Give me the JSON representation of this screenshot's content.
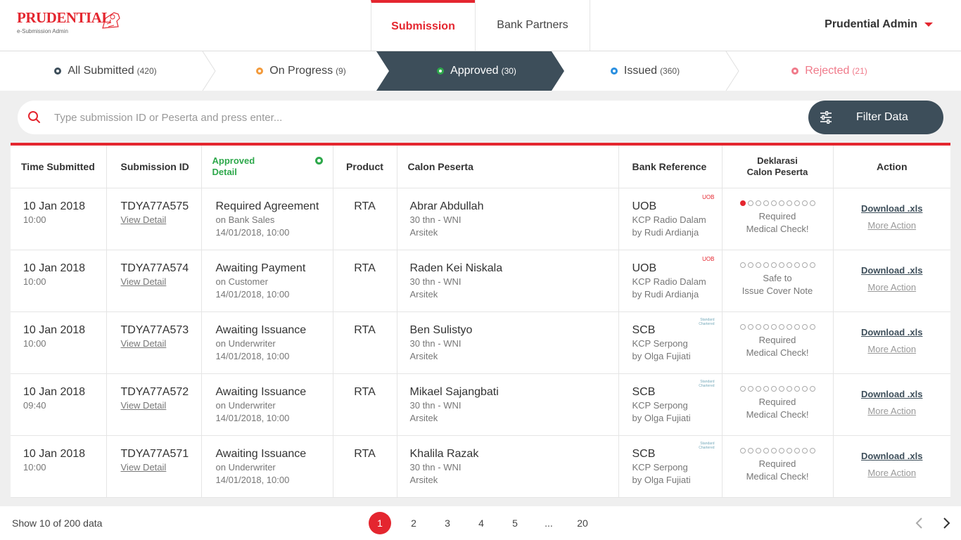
{
  "brand": {
    "name": "PRUDENTIAL",
    "subtitle": "e-Submission Admin"
  },
  "nav": {
    "tabs": [
      {
        "label": "Submission"
      },
      {
        "label": "Bank Partners"
      }
    ],
    "user": "Prudential Admin"
  },
  "statuses": [
    {
      "label": "All Submitted",
      "count": "(420)",
      "color": "#3d4e5a"
    },
    {
      "label": "On Progress",
      "count": "(9)",
      "color": "#f39a3b"
    },
    {
      "label": "Approved",
      "count": "(30)",
      "color": "#2ea84b"
    },
    {
      "label": "Issued",
      "count": "(360)",
      "color": "#2a8fe0"
    },
    {
      "label": "Rejected",
      "count": "(21)",
      "color": "#f07a8a"
    }
  ],
  "search": {
    "placeholder": "Type submission ID or Peserta and press enter...",
    "filter_label": "Filter Data"
  },
  "table": {
    "headers": {
      "time": "Time  Submitted",
      "id": "Submission ID",
      "approved_1": "Approved",
      "approved_2": "Detail",
      "product": "Product",
      "calon": "Calon Peserta",
      "bank": "Bank Reference",
      "dekl_1": "Deklarasi",
      "dekl_2": "Calon Peserta",
      "action": "Action"
    },
    "rows": [
      {
        "date": "10 Jan 2018",
        "time": "10:00",
        "id": "TDYA77A575",
        "view": "View Detail",
        "status": "Required Agreement",
        "status_by": "on Bank Sales",
        "status_time": "14/01/2018, 10:00",
        "product": "RTA",
        "name": "Abrar Abdullah",
        "age": "30 thn  - WNI",
        "job": "Arsitek",
        "bank": "UOB",
        "bank_logo": "UOB",
        "branch": "KCP Radio Dalam",
        "agent": "by Rudi Ardianja",
        "dekl_1": "Required",
        "dekl_2": "Medical Check!",
        "dots_on": 1,
        "download": "Download .xls",
        "more": "More Action"
      },
      {
        "date": "10 Jan 2018",
        "time": "10:00",
        "id": "TDYA77A574",
        "view": "View Detail",
        "status": "Awaiting Payment",
        "status_by": "on Customer",
        "status_time": "14/01/2018, 10:00",
        "product": "RTA",
        "name": "Raden Kei Niskala",
        "age": "30 thn  - WNI",
        "job": "Arsitek",
        "bank": "UOB",
        "bank_logo": "UOB",
        "branch": "KCP Radio Dalam",
        "agent": "by Rudi Ardianja",
        "dekl_1": "Safe to",
        "dekl_2": "Issue Cover Note",
        "dots_on": 0,
        "download": "Download .xls",
        "more": "More Action"
      },
      {
        "date": "10 Jan 2018",
        "time": "10:00",
        "id": "TDYA77A573",
        "view": "View Detail",
        "status": "Awaiting Issuance",
        "status_by": "on Underwriter",
        "status_time": "14/01/2018, 10:00",
        "product": "RTA",
        "name": "Ben Sulistyo",
        "age": "30 thn  - WNI",
        "job": "Arsitek",
        "bank": "SCB",
        "bank_logo": "Standard Chartered",
        "branch": "KCP Serpong",
        "agent": "by Olga Fujiati",
        "dekl_1": "Required",
        "dekl_2": "Medical Check!",
        "dots_on": 0,
        "download": "Download .xls",
        "more": "More Action"
      },
      {
        "date": "10 Jan 2018",
        "time": "09:40",
        "id": "TDYA77A572",
        "view": "View Detail",
        "status": "Awaiting Issuance",
        "status_by": "on Underwriter",
        "status_time": "14/01/2018, 10:00",
        "product": "RTA",
        "name": "Mikael Sajangbati",
        "age": "30 thn  - WNI",
        "job": "Arsitek",
        "bank": "SCB",
        "bank_logo": "Standard Chartered",
        "branch": "KCP Serpong",
        "agent": "by Olga Fujiati",
        "dekl_1": "Required",
        "dekl_2": "Medical Check!",
        "dots_on": 0,
        "download": "Download .xls",
        "more": "More Action"
      },
      {
        "date": "10 Jan 2018",
        "time": "10:00",
        "id": "TDYA77A571",
        "view": "View Detail",
        "status": "Awaiting Issuance",
        "status_by": "on Underwriter",
        "status_time": "14/01/2018, 10:00",
        "product": "RTA",
        "name": "Khalila Razak",
        "age": "30 thn  - WNI",
        "job": "Arsitek",
        "bank": "SCB",
        "bank_logo": "Standard Chartered",
        "branch": "KCP Serpong",
        "agent": "by Olga Fujiati",
        "dekl_1": "Required",
        "dekl_2": "Medical Check!",
        "dots_on": 0,
        "download": "Download .xls",
        "more": "More Action"
      }
    ]
  },
  "footer": {
    "show": "Show 10 of 200 data",
    "pages": [
      "1",
      "2",
      "3",
      "4",
      "5",
      "...",
      "20"
    ],
    "current_page": 1
  },
  "colors": {
    "accent": "#e4262f",
    "dark": "#3d4e5a",
    "approved": "#2ea84b"
  },
  "icons": {
    "search": "search-icon",
    "filter": "sliders-icon",
    "prev": "chevron-left-icon",
    "next": "chevron-right-icon",
    "user_menu": "caret-down-icon"
  }
}
